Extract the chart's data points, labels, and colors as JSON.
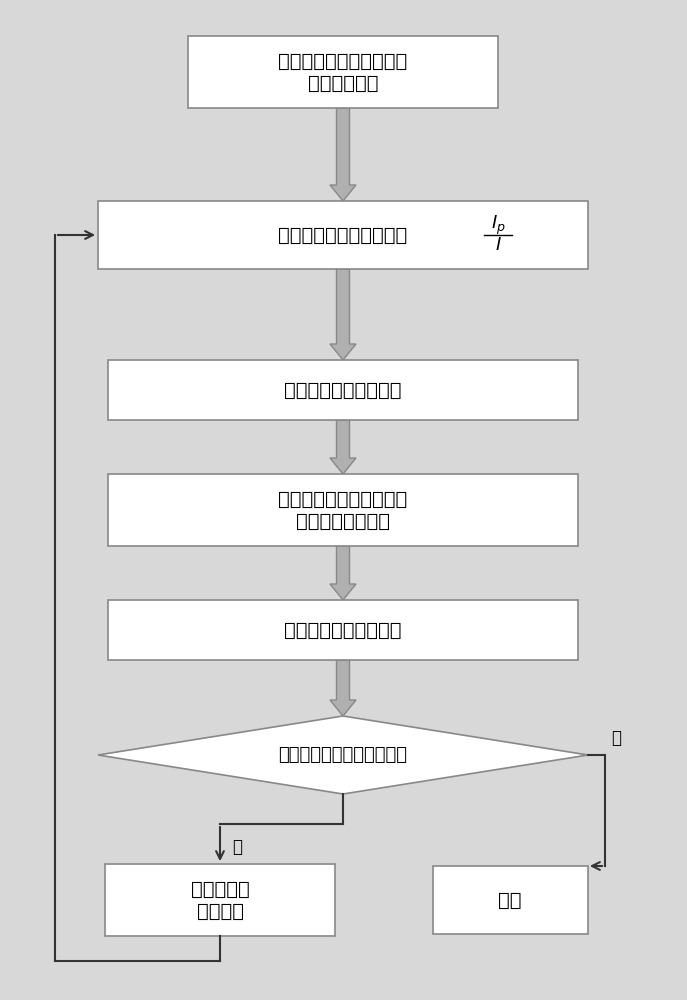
{
  "bg_color": "#d8d8d8",
  "box_color": "#ffffff",
  "box_edge_color": "#888888",
  "arrow_color": "#aaaaaa",
  "text_color": "#000000",
  "line_color": "#333333",
  "b1_text": "建立高压转子动力学模型\n与动力学方程",
  "b2_text": "确定转子系统转动惯量比",
  "b3_text": "确定两阶临界转速范围",
  "b4_text": "根据转子振动特性设计要\n求确定支承刚度比",
  "b5_text": "配置残余不平衡量相位",
  "d_text": "检验是否存在参数临界转速",
  "b6_text": "修正或优化\n结构参数",
  "b7_text": "结束",
  "yes_text": "是",
  "no_text": "否"
}
